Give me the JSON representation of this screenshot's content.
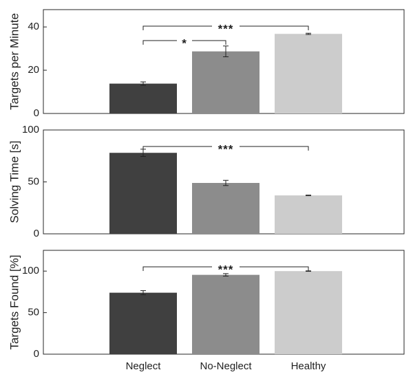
{
  "chart_data": [
    {
      "type": "bar",
      "ylabel": "Targets per Minute",
      "categories": [
        "Neglect",
        "No-Neglect",
        "Healthy"
      ],
      "values": [
        13.8,
        28.7,
        36.8
      ],
      "errors": [
        0.8,
        2.5,
        0.3
      ],
      "ylim": [
        0,
        48
      ],
      "yticks": [
        0,
        20,
        40
      ],
      "grid": false,
      "show_xticklabels": false,
      "significance": [
        {
          "from": 0,
          "to": 2,
          "label": "***",
          "level": 0
        },
        {
          "from": 0,
          "to": 1,
          "label": "*",
          "level": 1
        }
      ]
    },
    {
      "type": "bar",
      "ylabel": "Solving Time [s]",
      "categories": [
        "Neglect",
        "No-Neglect",
        "Healthy"
      ],
      "values": [
        78,
        49,
        37
      ],
      "errors": [
        3.5,
        2.5,
        0.3
      ],
      "ylim": [
        0,
        100
      ],
      "yticks": [
        0,
        50,
        100
      ],
      "grid": false,
      "show_xticklabels": false,
      "significance": [
        {
          "from": 0,
          "to": 2,
          "label": "***",
          "level": 0
        }
      ]
    },
    {
      "type": "bar",
      "ylabel": "Targets Found [%]",
      "categories": [
        "Neglect",
        "No-Neglect",
        "Healthy"
      ],
      "values": [
        74,
        95.5,
        100
      ],
      "errors": [
        2.5,
        1.5,
        0.3
      ],
      "ylim": [
        0,
        125
      ],
      "yticks": [
        0,
        50,
        100
      ],
      "grid": false,
      "show_xticklabels": true,
      "significance": [
        {
          "from": 0,
          "to": 2,
          "label": "***",
          "level": 0
        }
      ]
    }
  ],
  "colors": {
    "bars": [
      "#404040",
      "#8c8c8c",
      "#cccccc"
    ],
    "axes": "#262626",
    "error_bars": "#222222",
    "brackets": "#222222"
  }
}
